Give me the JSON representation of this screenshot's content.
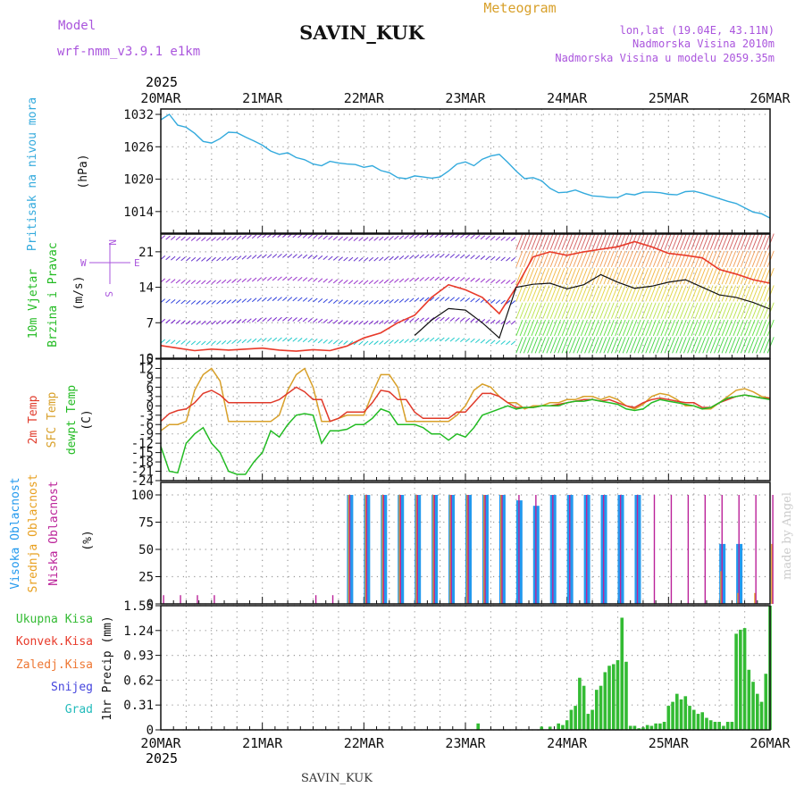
{
  "header": {
    "model_label": "Model",
    "model_name": "wrf-nmm_v3.9.1 e1km",
    "station": "SAVIN_KUK",
    "product": "Meteogram",
    "coords": "lon,lat (19.04E, 43.11N)",
    "elevation": "Nadmorska Visina 2010m",
    "model_elevation": "Nadmorska Visina u modelu 2059.35m"
  },
  "footer": {
    "station": "SAVIN_KUK",
    "credit": "made by Angel"
  },
  "colors": {
    "pressure": "#33aadd",
    "wind_speed": "#e83a2a",
    "temp2m": "#e03a2a",
    "sfc_temp": "#d8a02a",
    "dewpt": "#22bb22",
    "high_cloud": "#2299ee",
    "mid_cloud": "#e8a020",
    "low_cloud": "#bb2299",
    "precip_total": "#33bb33",
    "precip_conv": "#e83a2a",
    "snow": "#4444dd",
    "hail": "#22bbbb",
    "model_purple": "#aa55dd"
  },
  "time_axis": {
    "year": "2025",
    "labels": [
      "20MAR",
      "21MAR",
      "22MAR",
      "23MAR",
      "24MAR",
      "25MAR",
      "26MAR"
    ]
  },
  "chart_data": [
    {
      "type": "line",
      "panel": "pressure",
      "ylabel": "Pritisak na nivou mora",
      "unit": "(hPa)",
      "yticks": [
        "1032",
        "1026",
        "1020",
        "1014"
      ],
      "ylim": [
        1010,
        1033
      ],
      "x_hours": [
        0,
        2,
        4,
        6,
        8,
        10,
        12,
        14,
        16,
        18,
        20,
        22,
        24,
        26,
        28,
        30,
        32,
        34,
        36,
        38,
        40,
        42,
        44,
        46,
        48,
        50,
        52,
        54,
        56,
        58,
        60,
        62,
        64,
        66,
        68,
        70,
        72,
        74,
        76,
        78,
        80,
        82,
        84,
        86,
        88,
        90,
        92,
        94,
        96,
        98,
        100,
        102,
        104,
        106,
        108,
        110,
        112,
        114,
        116,
        118,
        120,
        122,
        124,
        126,
        128,
        130,
        132,
        134,
        136,
        138,
        140,
        142,
        144
      ],
      "series": [
        {
          "values": [
            1031,
            1032,
            1030,
            1029.6,
            1028.5,
            1027,
            1026.7,
            1027.5,
            1028.7,
            1028.6,
            1027.8,
            1027.1,
            1026.3,
            1025.2,
            1024.6,
            1024.9,
            1024,
            1023.6,
            1022.8,
            1022.5,
            1023.3,
            1023,
            1022.8,
            1022.7,
            1022.2,
            1022.5,
            1021.6,
            1021.2,
            1020.3,
            1020.1,
            1020.6,
            1020.4,
            1020.2,
            1020.4,
            1021.5,
            1022.8,
            1023.2,
            1022.5,
            1023.7,
            1024.3,
            1024.6,
            1023.1,
            1021.5,
            1020.1,
            1020.3,
            1019.7,
            1018.3,
            1017.5,
            1017.6,
            1018,
            1017.4,
            1016.9,
            1016.8,
            1016.6,
            1016.6,
            1017.3,
            1017.1,
            1017.6,
            1017.6,
            1017.5,
            1017.2,
            1017.1,
            1017.7,
            1017.8,
            1017.4,
            1016.9,
            1016.4,
            1015.9,
            1015.5,
            1014.7,
            1013.9,
            1013.6,
            1012.8
          ]
        }
      ]
    },
    {
      "type": "line",
      "panel": "wind",
      "ylabel": "10m Vjetar",
      "ylabel2": "Brzina i Pravac",
      "unit": "(m/s)",
      "compass": {
        "n": "N",
        "s": "S",
        "e": "E",
        "w": "W"
      },
      "yticks": [
        "21",
        "14",
        "7",
        "0"
      ],
      "ylim": [
        0,
        24.5
      ],
      "x_hours": [
        0,
        4,
        8,
        12,
        16,
        20,
        24,
        28,
        32,
        36,
        40,
        44,
        48,
        52,
        56,
        60,
        64,
        68,
        72,
        76,
        80,
        84,
        88,
        92,
        96,
        100,
        104,
        108,
        112,
        116,
        120,
        124,
        128,
        132,
        136,
        140,
        144
      ],
      "series": [
        {
          "name": "red",
          "values": [
            2.5,
            2,
            1.5,
            1.8,
            1.6,
            1.8,
            2,
            1.6,
            1.4,
            1.7,
            1.5,
            2.4,
            4,
            5,
            7,
            8.5,
            12,
            14.5,
            13.5,
            12,
            8.8,
            14,
            20,
            21,
            20.3,
            21,
            21.5,
            22,
            23,
            22,
            20.7,
            20.3,
            19.8,
            17.5,
            16.6,
            15.5,
            14.8
          ]
        },
        {
          "name": "black",
          "values": [
            null,
            null,
            null,
            null,
            null,
            null,
            null,
            null,
            null,
            null,
            null,
            null,
            null,
            null,
            null,
            4.5,
            7.5,
            9.8,
            9.5,
            7,
            4,
            14,
            14.6,
            14.8,
            13.7,
            14.5,
            16.5,
            15,
            13.8,
            14.2,
            15,
            15.5,
            14,
            12.5,
            12,
            11,
            9.7
          ]
        }
      ]
    },
    {
      "type": "line",
      "panel": "temperature",
      "ylabel_t2m": "2m Temp",
      "ylabel_sfc": "SFC Temp",
      "ylabel_dew": "dewpt Temp",
      "unit": "(C)",
      "yticks": [
        "15",
        "12",
        "9",
        "6",
        "3",
        "0",
        "-3",
        "-6",
        "-9",
        "-12",
        "-15",
        "-18",
        "-21",
        "-24"
      ],
      "ylim": [
        -24,
        15
      ],
      "x_hours": [
        0,
        2,
        4,
        6,
        8,
        10,
        12,
        14,
        16,
        18,
        20,
        22,
        24,
        26,
        28,
        30,
        32,
        34,
        36,
        38,
        40,
        42,
        44,
        46,
        48,
        50,
        52,
        54,
        56,
        58,
        60,
        62,
        64,
        66,
        68,
        70,
        72,
        74,
        76,
        78,
        80,
        82,
        84,
        86,
        88,
        90,
        92,
        94,
        96,
        98,
        100,
        102,
        104,
        106,
        108,
        110,
        112,
        114,
        116,
        118,
        120,
        122,
        124,
        126,
        128,
        130,
        132,
        134,
        136,
        138,
        140,
        142,
        144
      ],
      "series": [
        {
          "name": "2m",
          "values": [
            -5,
            -2.5,
            -1.5,
            -1,
            1,
            4,
            5,
            3.5,
            1,
            1,
            1,
            1,
            1,
            1,
            2,
            4,
            6,
            4.5,
            2,
            2,
            -5,
            -4,
            -2,
            -2,
            -2,
            1,
            5,
            4.5,
            2,
            2,
            -2,
            -4,
            -4,
            -4,
            -4,
            -2,
            -2,
            1,
            4,
            4,
            3,
            1,
            -0.5,
            -0.5,
            -0.5,
            0,
            0,
            0.5,
            1,
            1.5,
            2,
            2,
            1.5,
            2,
            1,
            0,
            -0.5,
            1,
            2,
            2.5,
            2,
            1.5,
            1,
            1,
            -0.5,
            -0.5,
            1,
            2,
            3,
            3.5,
            3,
            2.5,
            2.5
          ]
        },
        {
          "name": "sfc",
          "values": [
            -8,
            -6,
            -6,
            -5,
            5,
            10,
            12,
            8,
            -5,
            -5,
            -5,
            -5,
            -5,
            -5,
            -3,
            5,
            10,
            12,
            6,
            -5,
            -5,
            -4,
            -3,
            -3,
            -3,
            4,
            10,
            10,
            6,
            -5,
            -5,
            -5,
            -5,
            -5,
            -5,
            -3,
            0,
            5,
            7,
            6,
            3,
            1,
            1,
            -1,
            0,
            0,
            1,
            1,
            2,
            2,
            3,
            3,
            2,
            3,
            2,
            0,
            -1,
            0.5,
            3,
            4,
            3.5,
            2,
            0,
            0,
            -1,
            -1,
            1,
            3,
            5,
            5.5,
            4.5,
            3,
            2.5
          ]
        },
        {
          "name": "dewpt",
          "values": [
            -13,
            -21,
            -21.5,
            -12,
            -9,
            -7,
            -12,
            -15,
            -21,
            -22,
            -22,
            -18,
            -15,
            -8,
            -10,
            -6,
            -3,
            -2.5,
            -3,
            -12,
            -8,
            -8,
            -7.5,
            -6,
            -6,
            -4,
            -1,
            -2,
            -6,
            -6,
            -6,
            -7,
            -9,
            -9,
            -11,
            -9,
            -10,
            -7,
            -3,
            -2,
            -1,
            0,
            -1,
            -0.5,
            -0.5,
            0,
            0,
            0,
            1,
            1.5,
            1.5,
            2,
            1.5,
            1,
            0.5,
            -1,
            -1.5,
            -1,
            1,
            2,
            1.5,
            1,
            0.5,
            0,
            -1,
            -0.5,
            1,
            2.5,
            3,
            3.5,
            3,
            2.5,
            2
          ]
        }
      ]
    },
    {
      "type": "bar",
      "panel": "clouds",
      "ylabel_high": "Visoka Oblacnost",
      "ylabel_mid": "Srednja Oblacnost",
      "ylabel_low": "Niska Oblacnost",
      "unit": "(%)",
      "yticks": [
        "100",
        "75",
        "50",
        "25",
        "0"
      ],
      "ylim": [
        0,
        100
      ],
      "x_hours": [
        0,
        4,
        8,
        12,
        16,
        20,
        24,
        28,
        32,
        36,
        40,
        44,
        48,
        52,
        56,
        60,
        64,
        68,
        72,
        76,
        80,
        84,
        88,
        92,
        96,
        100,
        104,
        108,
        112,
        116,
        120,
        124,
        128,
        132,
        136,
        140,
        144
      ],
      "series": [
        {
          "name": "high",
          "values": [
            0,
            0,
            0,
            0,
            0,
            0,
            0,
            0,
            0,
            0,
            0,
            100,
            100,
            100,
            100,
            100,
            100,
            100,
            100,
            100,
            100,
            95,
            90,
            100,
            100,
            100,
            100,
            100,
            100,
            0,
            0,
            0,
            0,
            55,
            55,
            0,
            0
          ]
        },
        {
          "name": "mid",
          "values": [
            0,
            0,
            0,
            0,
            0,
            0,
            0,
            0,
            0,
            0,
            0,
            100,
            100,
            100,
            100,
            100,
            100,
            100,
            100,
            100,
            100,
            0,
            0,
            0,
            0,
            0,
            0,
            0,
            0,
            0,
            0,
            0,
            0,
            30,
            10,
            10,
            55
          ]
        },
        {
          "name": "low",
          "values": [
            8,
            8,
            8,
            8,
            0,
            0,
            0,
            0,
            0,
            8,
            8,
            100,
            100,
            100,
            100,
            100,
            100,
            100,
            100,
            100,
            100,
            100,
            100,
            100,
            100,
            100,
            100,
            100,
            100,
            100,
            100,
            100,
            100,
            100,
            100,
            100,
            100
          ]
        }
      ]
    },
    {
      "type": "bar",
      "panel": "precip",
      "ylabel": "1hr Precip (mm)",
      "labels": {
        "total": "Ukupna Kisa",
        "conv": "Konvek.Kisa",
        "frz": "Zaledj.Kisa",
        "snow": "Snijeg",
        "hail": "Grad"
      },
      "yticks": [
        "1.55",
        "1.24",
        "0.93",
        "0.62",
        "0.31",
        "0"
      ],
      "ylim": [
        0,
        1.55
      ],
      "x_hours": [
        75,
        90,
        92,
        94,
        95,
        96,
        97,
        98,
        99,
        100,
        101,
        102,
        103,
        104,
        105,
        106,
        107,
        108,
        109,
        110,
        111,
        112,
        113,
        114,
        115,
        116,
        117,
        118,
        119,
        120,
        121,
        122,
        123,
        124,
        125,
        126,
        127,
        128,
        129,
        130,
        131,
        132,
        133,
        134,
        135,
        136,
        137,
        138,
        139,
        140,
        141,
        142,
        143,
        144
      ],
      "series": [
        {
          "values": [
            0.08,
            0.04,
            0.04,
            0.08,
            0.06,
            0.12,
            0.25,
            0.3,
            0.65,
            0.55,
            0.2,
            0.25,
            0.5,
            0.55,
            0.72,
            0.8,
            0.82,
            0.87,
            1.4,
            0.85,
            0.05,
            0.05,
            0.02,
            0.03,
            0.06,
            0.05,
            0.08,
            0.08,
            0.1,
            0.3,
            0.35,
            0.45,
            0.38,
            0.42,
            0.3,
            0.25,
            0.2,
            0.22,
            0.15,
            0.12,
            0.1,
            0.1,
            0.05,
            0.1,
            0.1,
            1.2,
            1.25,
            1.27,
            0.75,
            0.6,
            0.45,
            0.35,
            0.7,
            1.55
          ]
        }
      ]
    }
  ]
}
